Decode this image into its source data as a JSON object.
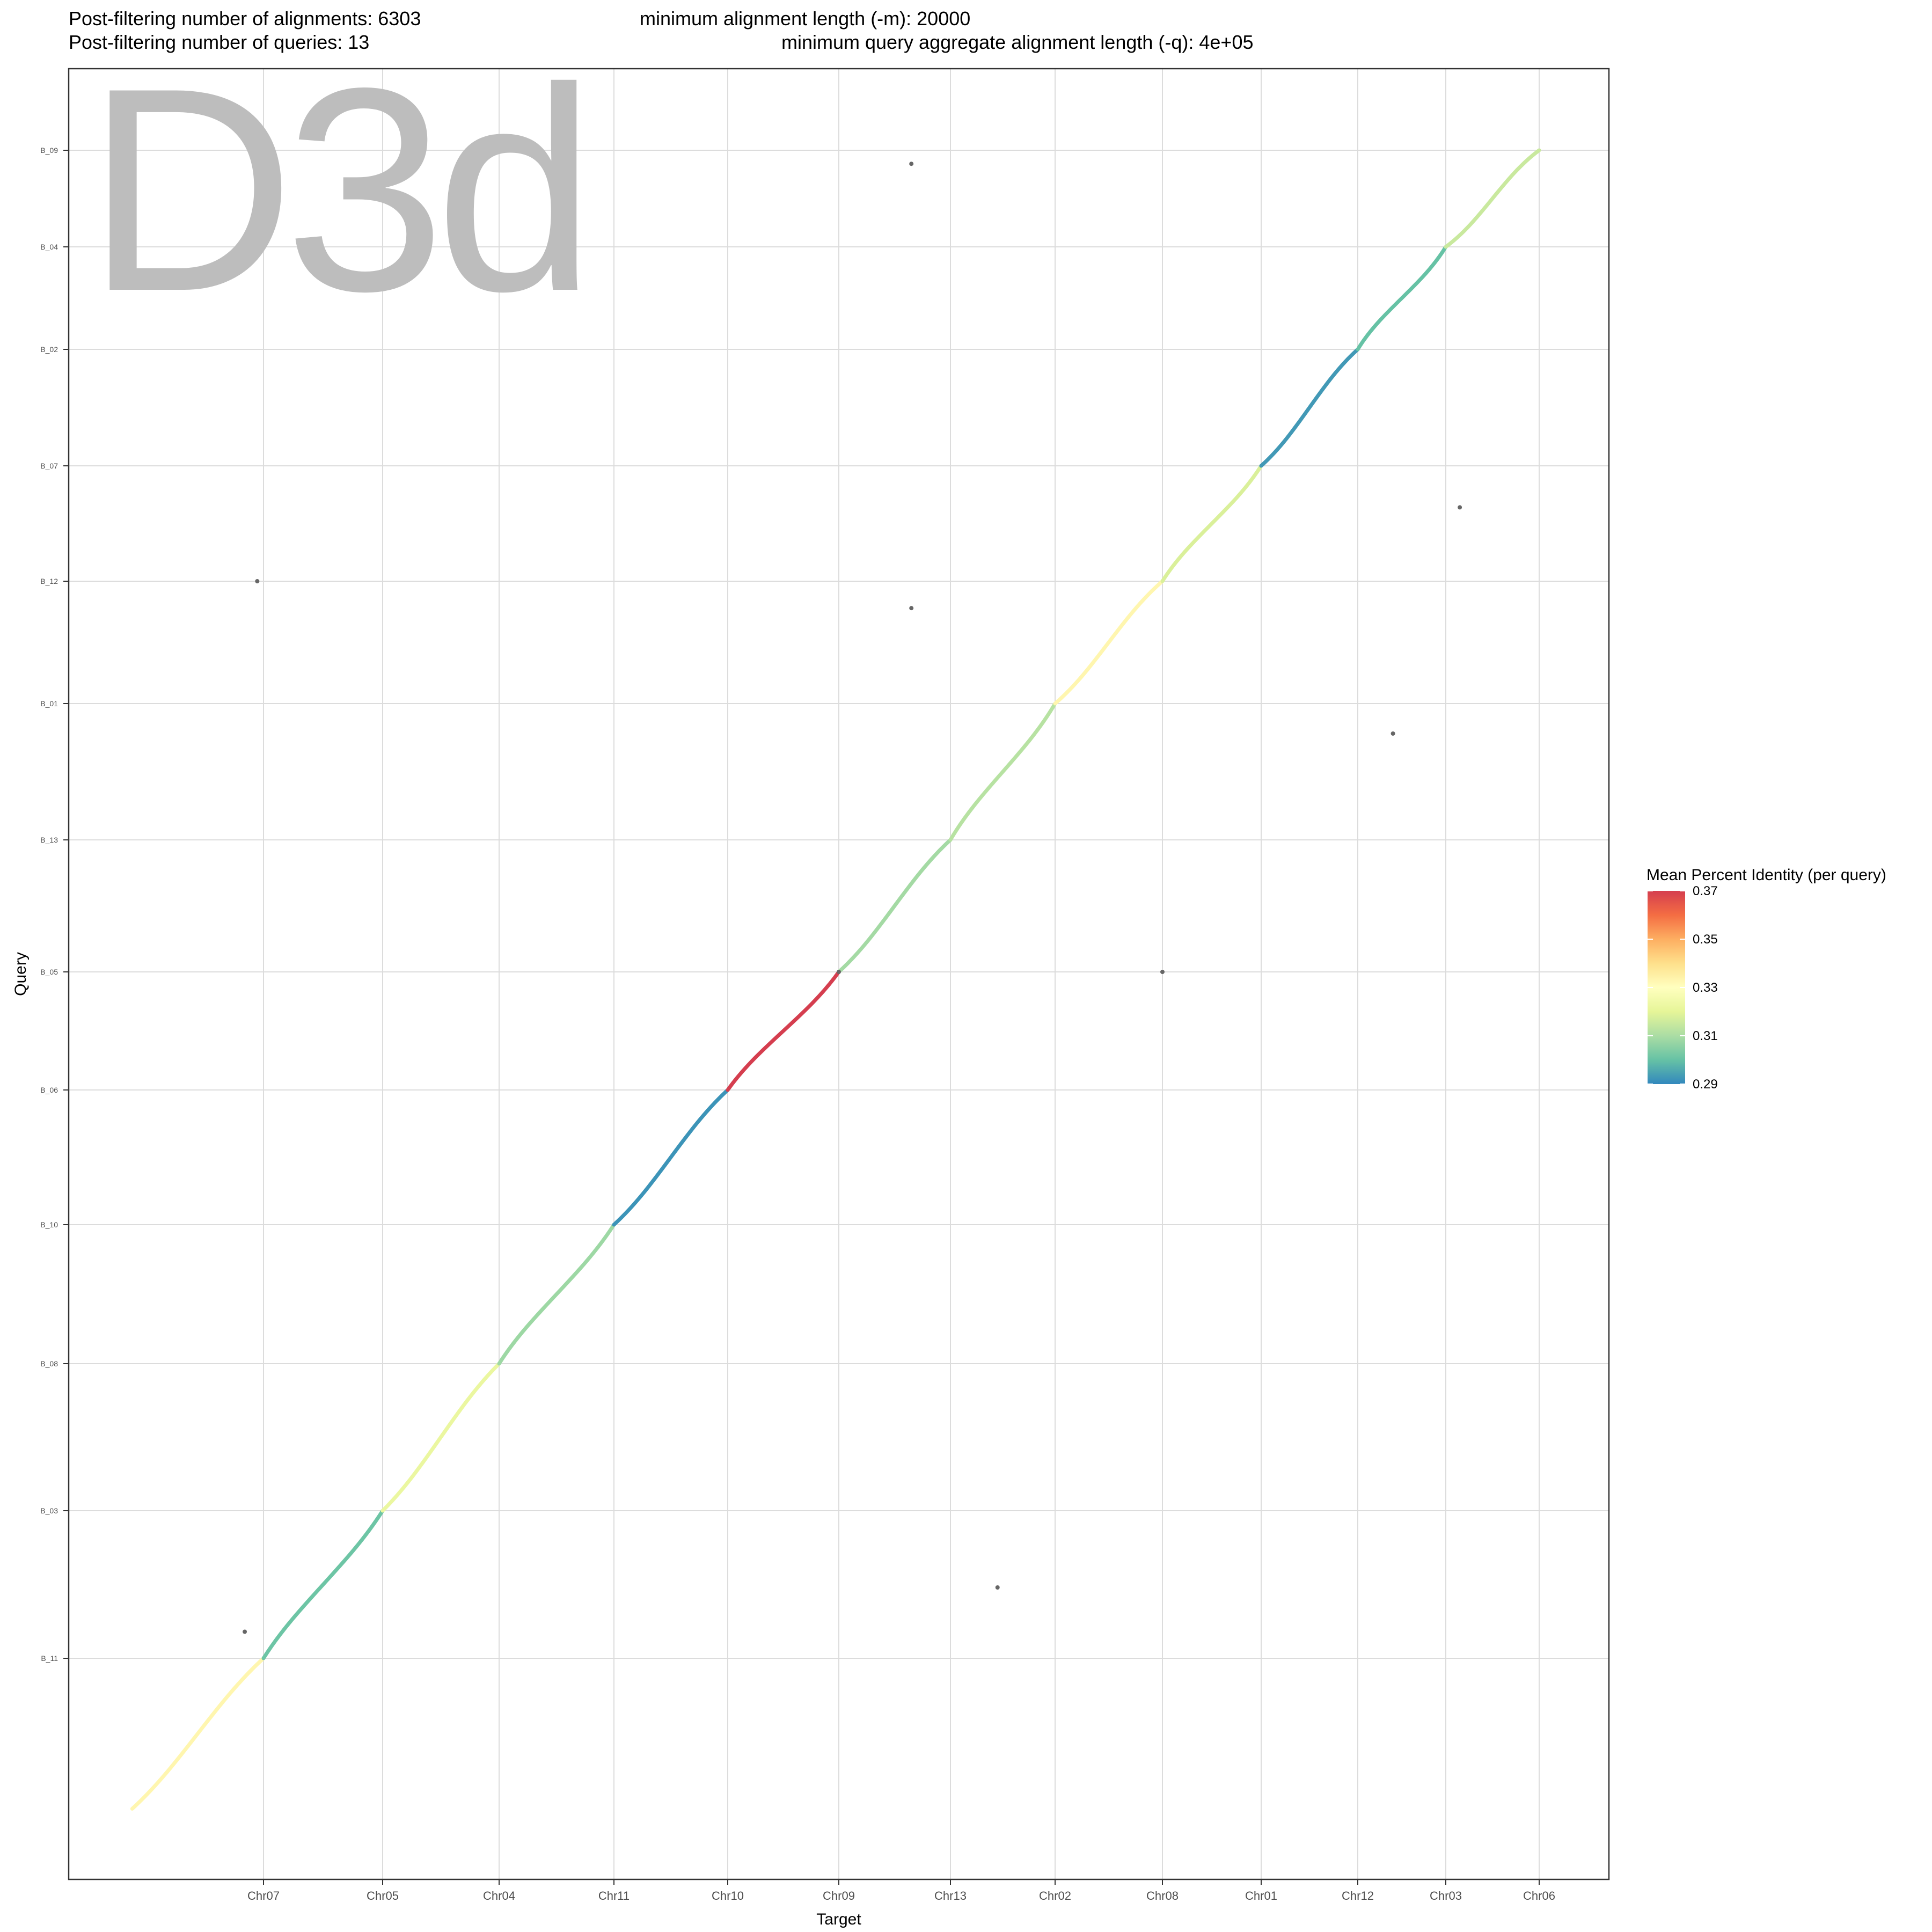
{
  "header": {
    "alignments": "Post-filtering number of alignments: 6303",
    "queries": "Post-filtering number of queries: 13",
    "min_alignment": "minimum alignment length (-m): 20000",
    "min_query": "minimum query aggregate alignment length (-q): 4e+05"
  },
  "watermark": "D3d",
  "chart_data": {
    "type": "scatter",
    "xlabel": "Target",
    "ylabel": "Query",
    "x_ticks": [
      "Chr07",
      "Chr05",
      "Chr04",
      "Chr11",
      "Chr10",
      "Chr09",
      "Chr13",
      "Chr02",
      "Chr08",
      "Chr01",
      "Chr12",
      "Chr03",
      "Chr06"
    ],
    "y_ticks": [
      "B_11",
      "B_03",
      "B_08",
      "B_10",
      "B_06",
      "B_05",
      "B_13",
      "B_01",
      "B_12",
      "B_07",
      "B_02",
      "B_04",
      "B_09"
    ],
    "x_range": [
      0,
      13
    ],
    "y_range": [
      0,
      13
    ],
    "grid": true,
    "legend": {
      "title": "Mean Percent Identity (per query)",
      "position": "right",
      "ticks": [
        0.37,
        0.35,
        0.33,
        0.31,
        0.29
      ],
      "range": [
        0.29,
        0.37
      ],
      "palette": [
        "#3288bd",
        "#66c2a5",
        "#abdda4",
        "#e6f598",
        "#ffffbf",
        "#fee08b",
        "#fdae61",
        "#f46d43",
        "#d53e4f"
      ]
    },
    "segments": [
      {
        "query": "B_11",
        "target": "Chr07",
        "x": [
          -0.05,
          1.0
        ],
        "y": [
          -0.05,
          1.0
        ],
        "identity": 0.333
      },
      {
        "query": "B_03",
        "target": "Chr05",
        "x": [
          1.0,
          2.0
        ],
        "y": [
          1.0,
          2.0
        ],
        "identity": 0.301
      },
      {
        "query": "B_08",
        "target": "Chr04",
        "x": [
          2.0,
          3.0
        ],
        "y": [
          2.0,
          3.0
        ],
        "identity": 0.322
      },
      {
        "query": "B_10",
        "target": "Chr11",
        "x": [
          3.0,
          4.0
        ],
        "y": [
          3.0,
          4.0
        ],
        "identity": 0.308
      },
      {
        "query": "B_06",
        "target": "Chr10",
        "x": [
          4.0,
          5.0
        ],
        "y": [
          4.0,
          5.0
        ],
        "identity": 0.292
      },
      {
        "query": "B_05",
        "target": "Chr09",
        "x": [
          5.0,
          6.0
        ],
        "y": [
          5.0,
          6.0
        ],
        "identity": 0.37
      },
      {
        "query": "B_13",
        "target": "Chr13",
        "x": [
          6.0,
          7.0
        ],
        "y": [
          6.0,
          7.0
        ],
        "identity": 0.309
      },
      {
        "query": "B_01",
        "target": "Chr02",
        "x": [
          7.0,
          8.0
        ],
        "y": [
          7.0,
          8.0
        ],
        "identity": 0.312
      },
      {
        "query": "B_12",
        "target": "Chr08",
        "x": [
          8.0,
          9.0
        ],
        "y": [
          8.0,
          9.0
        ],
        "identity": 0.333
      },
      {
        "query": "B_07",
        "target": "Chr01",
        "x": [
          9.0,
          10.0
        ],
        "y": [
          9.0,
          10.0
        ],
        "identity": 0.318
      },
      {
        "query": "B_02",
        "target": "Chr12",
        "x": [
          10.0,
          11.0
        ],
        "y": [
          10.0,
          11.0
        ],
        "identity": 0.293
      },
      {
        "query": "B_04",
        "target": "Chr03",
        "x": [
          11.0,
          12.0
        ],
        "y": [
          11.0,
          12.0
        ],
        "identity": 0.3
      },
      {
        "query": "B_09",
        "target": "Chr06",
        "x": [
          12.0,
          13.0
        ],
        "y": [
          12.0,
          13.0
        ],
        "identity": 0.315
      }
    ],
    "off_diagonal_points": [
      {
        "x": 0.85,
        "y": 1.18
      },
      {
        "x": 0.95,
        "y": 9.0
      },
      {
        "x": 6.65,
        "y": 12.86
      },
      {
        "x": 6.65,
        "y": 8.78
      },
      {
        "x": 7.45,
        "y": 1.48
      },
      {
        "x": 9.0,
        "y": 6.0
      },
      {
        "x": 11.4,
        "y": 7.78
      },
      {
        "x": 12.15,
        "y": 9.64
      },
      {
        "x": 6.0,
        "y": 6.0
      }
    ]
  }
}
